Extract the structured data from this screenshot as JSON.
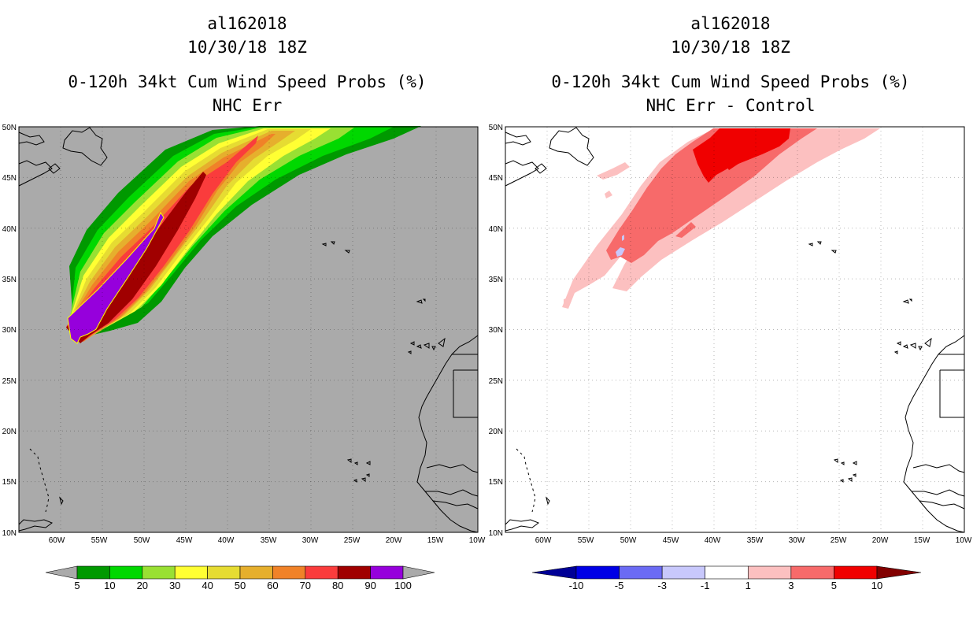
{
  "panels": [
    {
      "storm_id": "al162018",
      "datetime": "10/30/18 18Z",
      "product": "0-120h 34kt Cum Wind Speed Probs (%)",
      "subtitle": "NHC Err"
    },
    {
      "storm_id": "al162018",
      "datetime": "10/30/18 18Z",
      "product": "0-120h 34kt Cum Wind Speed Probs (%)",
      "subtitle": "NHC Err - Control"
    }
  ],
  "axes": {
    "lat_labels": [
      "50N",
      "45N",
      "40N",
      "35N",
      "30N",
      "25N",
      "20N",
      "15N",
      "10N"
    ],
    "lon_labels": [
      "60W",
      "55W",
      "50W",
      "45W",
      "40W",
      "35W",
      "30W",
      "25W",
      "20W",
      "15W",
      "10W"
    ],
    "lat_range": [
      10,
      50
    ],
    "lon_range": [
      -65,
      -10
    ]
  },
  "colorbar_left": {
    "labels": [
      "5",
      "10",
      "20",
      "30",
      "40",
      "50",
      "60",
      "70",
      "80",
      "90",
      "100"
    ],
    "colors": [
      "#009900",
      "#00d800",
      "#99e033",
      "#ffff33",
      "#e6dc32",
      "#e6af2d",
      "#f08228",
      "#fa3c3c",
      "#a00000",
      "#9600dc"
    ],
    "end_color": "#aaaaaa"
  },
  "colorbar_right": {
    "labels": [
      "-10",
      "-5",
      "-3",
      "-1",
      "1",
      "3",
      "5",
      "10"
    ],
    "colors": [
      "#0000e6",
      "#6b6bf4",
      "#c8c8fc",
      "#ffffff",
      "#fcc0c0",
      "#f76a6a",
      "#f00000"
    ],
    "end_low": "#000096",
    "end_high": "#820000"
  }
}
